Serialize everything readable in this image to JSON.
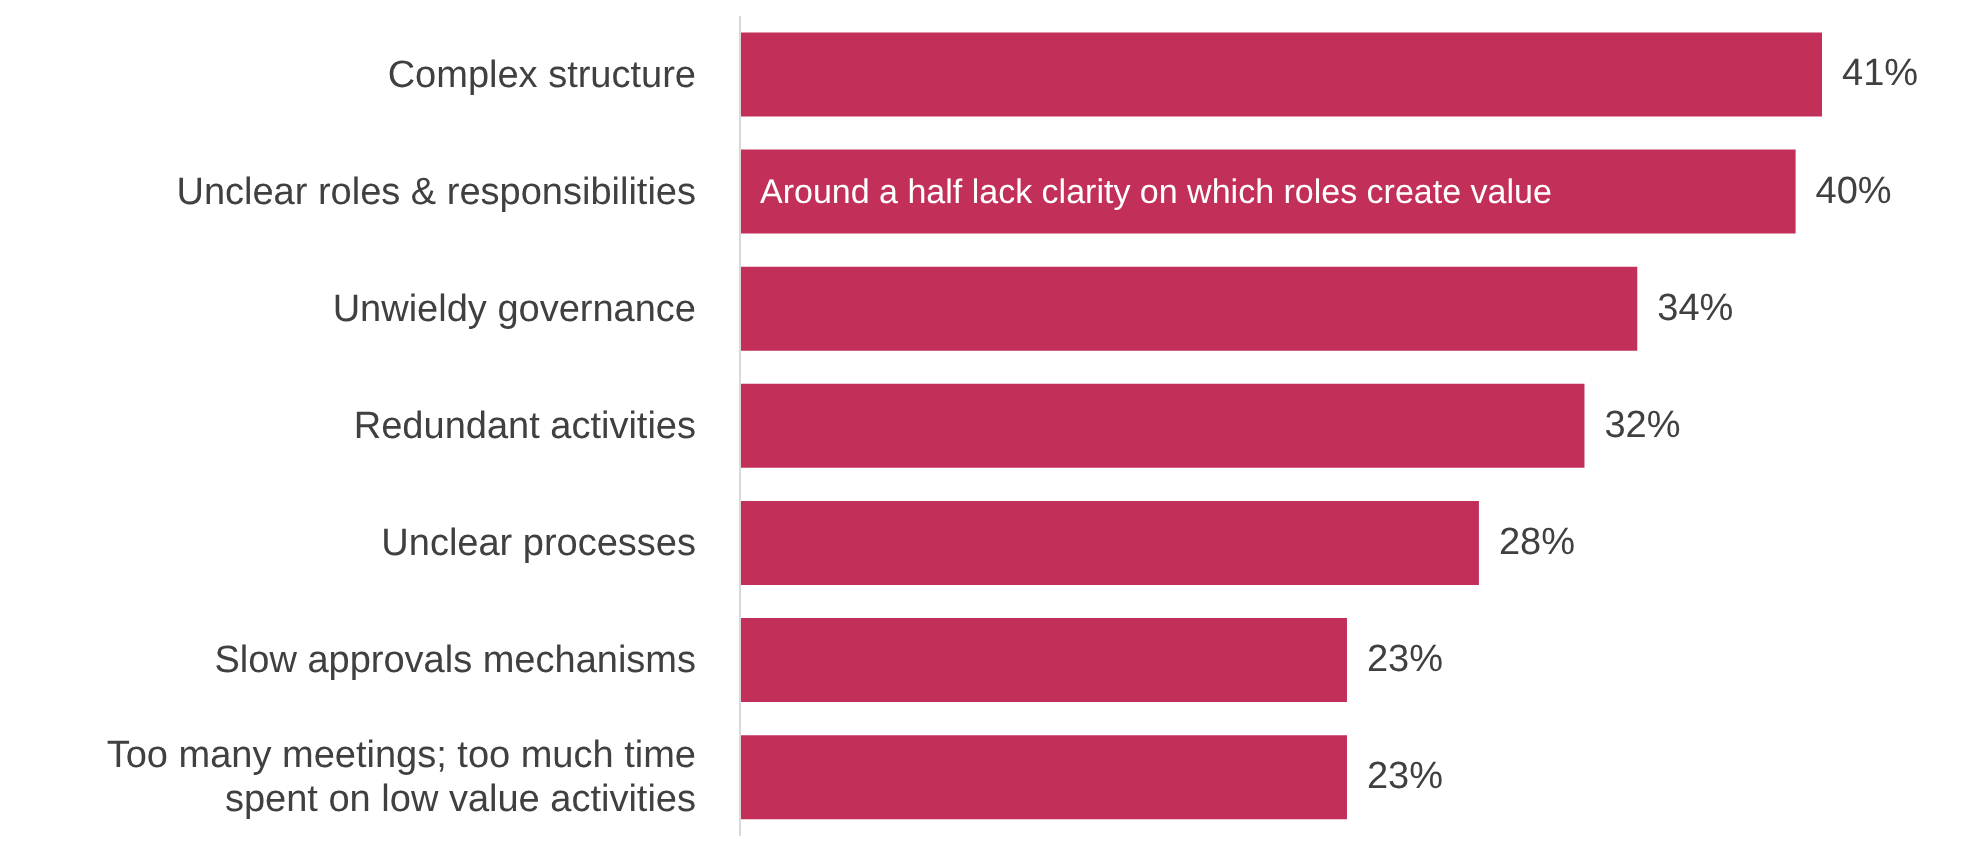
{
  "chart_data": {
    "type": "bar",
    "orientation": "horizontal",
    "categories": [
      "Complex structure",
      "Unclear roles & responsibilities",
      "Unwieldy governance",
      "Redundant activities",
      "Unclear processes",
      "Slow approvals mechanisms",
      "Too many meetings; too much time spent on low value activities"
    ],
    "values": [
      41,
      40,
      34,
      32,
      28,
      23,
      23
    ],
    "value_labels": [
      "41%",
      "40%",
      "34%",
      "32%",
      "28%",
      "23%",
      "23%"
    ],
    "color": "#c2305a",
    "annotations": [
      {
        "text": "Around a half lack clarity on which roles create value",
        "y": "Unclear roles & responsibilities"
      }
    ]
  }
}
